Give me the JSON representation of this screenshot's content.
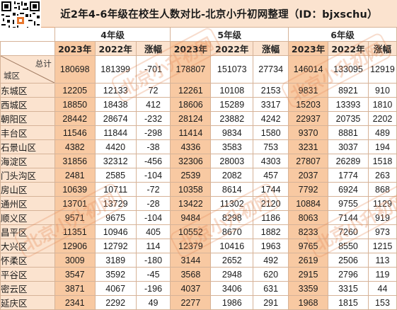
{
  "title": "近2年4-6年级在校生人数对比-北京小升初网整理（ID：bjxschu）",
  "watermark": "北京小升初网",
  "header": {
    "groups": [
      "4年级",
      "5年级",
      "6年级"
    ],
    "sub": [
      "2023年",
      "2022年",
      "涨幅"
    ],
    "corner_total": "总计",
    "corner_district": "城区"
  },
  "total": [
    "180698",
    "181399",
    "-701",
    "178807",
    "151073",
    "27734",
    "146014",
    "133095",
    "12919"
  ],
  "rows": [
    {
      "name": "东城区",
      "v": [
        "12205",
        "12133",
        "72",
        "12261",
        "10108",
        "2153",
        "9831",
        "8921",
        "910"
      ]
    },
    {
      "name": "西城区",
      "v": [
        "18850",
        "18438",
        "412",
        "18606",
        "15289",
        "3317",
        "15203",
        "13393",
        "1810"
      ]
    },
    {
      "name": "朝阳区",
      "v": [
        "28442",
        "28674",
        "-232",
        "28124",
        "23882",
        "4242",
        "22937",
        "20735",
        "2202"
      ]
    },
    {
      "name": "丰台区",
      "v": [
        "11546",
        "11844",
        "-298",
        "11414",
        "9834",
        "1580",
        "9370",
        "8881",
        "489"
      ]
    },
    {
      "name": "石景山区",
      "v": [
        "4382",
        "4420",
        "-38",
        "4336",
        "3583",
        "753",
        "3231",
        "3037",
        "194"
      ]
    },
    {
      "name": "海淀区",
      "v": [
        "31856",
        "32312",
        "-456",
        "32306",
        "28003",
        "4303",
        "27807",
        "26289",
        "1518"
      ]
    },
    {
      "name": "门头沟区",
      "v": [
        "2481",
        "2585",
        "-104",
        "2539",
        "2082",
        "457",
        "2037",
        "1774",
        "263"
      ]
    },
    {
      "name": "房山区",
      "v": [
        "10639",
        "10711",
        "-72",
        "10358",
        "8614",
        "1744",
        "7792",
        "6924",
        "868"
      ]
    },
    {
      "name": "通州区",
      "v": [
        "13701",
        "13729",
        "-28",
        "13422",
        "11302",
        "2120",
        "10884",
        "9755",
        "1129"
      ]
    },
    {
      "name": "顺义区",
      "v": [
        "9571",
        "9675",
        "-104",
        "9484",
        "8298",
        "1186",
        "8063",
        "7144",
        "919"
      ]
    },
    {
      "name": "昌平区",
      "v": [
        "11351",
        "10946",
        "405",
        "10552",
        "8670",
        "1882",
        "8233",
        "7260",
        "973"
      ]
    },
    {
      "name": "大兴区",
      "v": [
        "12906",
        "12792",
        "114",
        "12379",
        "10416",
        "1963",
        "9765",
        "8550",
        "1215"
      ]
    },
    {
      "name": "怀柔区",
      "v": [
        "3009",
        "3189",
        "-180",
        "3144",
        "2652",
        "492",
        "2619",
        "2506",
        "113"
      ]
    },
    {
      "name": "平谷区",
      "v": [
        "3547",
        "3592",
        "-45",
        "3568",
        "2948",
        "620",
        "2915",
        "2796",
        "119"
      ]
    },
    {
      "name": "密云区",
      "v": [
        "3871",
        "4067",
        "-196",
        "4037",
        "3406",
        "631",
        "3359",
        "3315",
        "44"
      ]
    },
    {
      "name": "延庆区",
      "v": [
        "2341",
        "2292",
        "49",
        "2277",
        "1986",
        "291",
        "1968",
        "1815",
        "153"
      ]
    }
  ]
}
